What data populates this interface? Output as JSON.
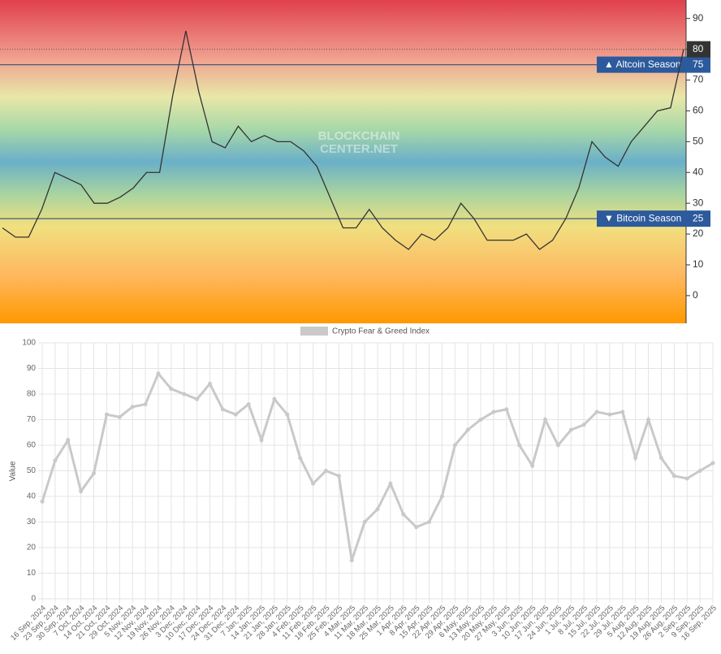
{
  "chart_data": [
    {
      "type": "line",
      "values": [
        22,
        19,
        19,
        28,
        40,
        38,
        36,
        30,
        30,
        32,
        35,
        40,
        40,
        65,
        86,
        66,
        50,
        48,
        55,
        50,
        52,
        50,
        50,
        47,
        42,
        32,
        22,
        22,
        28,
        22,
        18,
        15,
        20,
        18,
        22,
        30,
        25,
        18,
        18,
        18,
        20,
        15,
        18,
        25,
        35,
        50,
        45,
        42,
        50,
        55,
        60,
        61,
        80
      ],
      "color": "#333333",
      "ylim": [
        -9,
        96
      ],
      "yticks": [
        0,
        10,
        20,
        30,
        40,
        50,
        60,
        70,
        80,
        90
      ],
      "annotations": [
        {
          "text": "▲ Altcoin Season",
          "value": 75
        },
        {
          "text": "▼ Bitcoin Season",
          "value": 25
        }
      ],
      "watermark": [
        "BLOCKCHAIN",
        "CENTER.NET"
      ]
    },
    {
      "type": "line",
      "categories": [
        "16 Sep, 2024",
        "23 Sep, 2024",
        "30 Sep, 2024",
        "7 Oct, 2024",
        "14 Oct, 2024",
        "21 Oct, 2024",
        "29 Oct, 2024",
        "5 Nov, 2024",
        "12 Nov, 2024",
        "19 Nov, 2024",
        "26 Nov, 2024",
        "3 Dec, 2024",
        "10 Dec, 2024",
        "17 Dec, 2024",
        "24 Dec, 2024",
        "31 Dec, 2024",
        "7 Jan, 2025",
        "14 Jan, 2025",
        "21 Jan, 2025",
        "28 Jan, 2025",
        "4 Feb, 2025",
        "11 Feb, 2025",
        "18 Feb, 2025",
        "25 Feb, 2025",
        "4 Mar, 2025",
        "11 Mar, 2025",
        "18 Mar, 2025",
        "25 Mar, 2025",
        "1 Apr, 2025",
        "8 Apr, 2025",
        "15 Apr, 2025",
        "22 Apr, 2025",
        "29 Apr, 2025",
        "6 May, 2025",
        "13 May, 2025",
        "20 May, 2025",
        "27 May, 2025",
        "3 Jun, 2025",
        "10 Jun, 2025",
        "17 Jun, 2025",
        "24 Jun, 2025",
        "1 Jul, 2025",
        "8 Jul, 2025",
        "15 Jul, 2025",
        "22 Jul, 2025",
        "29 Jul, 2025",
        "5 Aug, 2025",
        "12 Aug, 2025",
        "19 Aug, 2025",
        "26 Aug, 2025",
        "2 Sep, 2025",
        "9 Sep, 2025",
        "16 Sep, 2025"
      ],
      "series": [
        {
          "name": "Crypto Fear & Greed Index",
          "color": "#c9c9c9",
          "values": [
            38,
            54,
            62,
            42,
            49,
            72,
            71,
            75,
            76,
            88,
            82,
            80,
            78,
            84,
            74,
            72,
            76,
            62,
            78,
            72,
            55,
            45,
            50,
            48,
            15,
            30,
            35,
            45,
            33,
            28,
            30,
            40,
            60,
            66,
            70,
            73,
            74,
            60,
            52,
            70,
            60,
            66,
            68,
            73,
            72,
            73,
            55,
            70,
            55,
            48,
            47,
            50,
            53
          ]
        }
      ],
      "ylabel": "Value",
      "ylim": [
        0,
        100
      ],
      "yticks": [
        0,
        10,
        20,
        30,
        40,
        50,
        60,
        70,
        80,
        90,
        100
      ],
      "grid": true
    }
  ]
}
